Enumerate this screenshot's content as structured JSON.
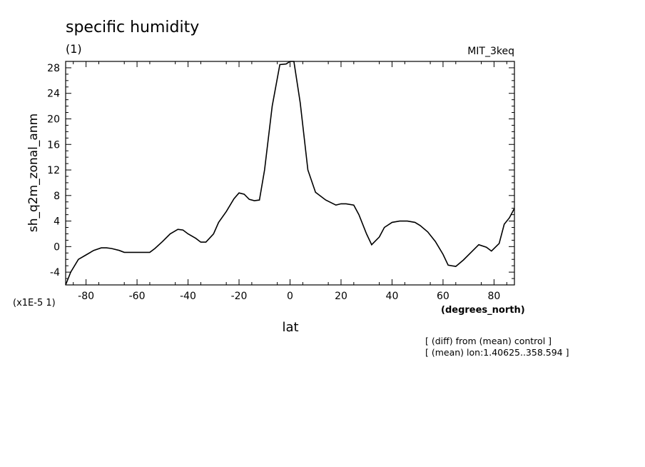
{
  "chart_data": {
    "type": "line",
    "title": "specific humidity",
    "subtitle": "(1)",
    "model_label": "MIT_3keq",
    "xlabel": "lat",
    "xunits": "(degrees_north)",
    "ylabel": "sh_q2m_zonal_anm",
    "yscale_note": "(x1E-5 1)",
    "xlim": [
      -88,
      88
    ],
    "ylim": [
      -6,
      29
    ],
    "xticks": [
      -80,
      -60,
      -40,
      -20,
      0,
      20,
      40,
      60,
      80
    ],
    "yticks": [
      -4,
      0,
      4,
      8,
      12,
      16,
      20,
      24,
      28
    ],
    "xtick_labels": [
      "-80",
      "-60",
      "-40",
      "-20",
      "0",
      "20",
      "40",
      "60",
      "80"
    ],
    "ytick_labels": [
      "-4",
      "0",
      "4",
      "8",
      "12",
      "16",
      "20",
      "24",
      "28"
    ],
    "grid": false,
    "series": [
      {
        "x": [
          -88,
          -86,
          -83,
          -80,
          -77,
          -74,
          -72,
          -70,
          -67,
          -65,
          -62,
          -60,
          -57,
          -55,
          -53,
          -50,
          -47,
          -44,
          -42,
          -40,
          -37,
          -35,
          -33,
          -30,
          -28,
          -25,
          -22,
          -20,
          -18,
          -16,
          -14,
          -12,
          -10,
          -7,
          -4,
          -1.5,
          0,
          1.5,
          4,
          7,
          10,
          14,
          18,
          20,
          22,
          25,
          27,
          30,
          32,
          35,
          37,
          40,
          43,
          46,
          49,
          51,
          54,
          57,
          60,
          62,
          65,
          68,
          71,
          74,
          77,
          79,
          82,
          84,
          86,
          88
        ],
        "y": [
          -6,
          -4,
          -2,
          -1.3,
          -0.6,
          -0.2,
          -0.2,
          -0.3,
          -0.6,
          -0.9,
          -0.9,
          -0.9,
          -0.9,
          -0.9,
          -0.3,
          0.8,
          2,
          2.7,
          2.6,
          2,
          1.3,
          0.7,
          0.7,
          2,
          3.8,
          5.5,
          7.5,
          8.4,
          8.2,
          7.4,
          7.2,
          7.3,
          12,
          22,
          28.5,
          28.6,
          29,
          29,
          22.5,
          12,
          8.5,
          7.3,
          6.5,
          6.7,
          6.7,
          6.5,
          5,
          2,
          0.3,
          1.5,
          3,
          3.8,
          4,
          4,
          3.8,
          3.3,
          2.3,
          0.8,
          -1.2,
          -2.9,
          -3.1,
          -2.1,
          -0.9,
          0.3,
          -0.1,
          -0.7,
          0.5,
          3.5,
          4.5,
          6
        ]
      }
    ]
  },
  "notes": {
    "line1": "[ (diff) from (mean) control ]",
    "line2": "[ (mean) lon:1.40625..358.594 ]"
  }
}
